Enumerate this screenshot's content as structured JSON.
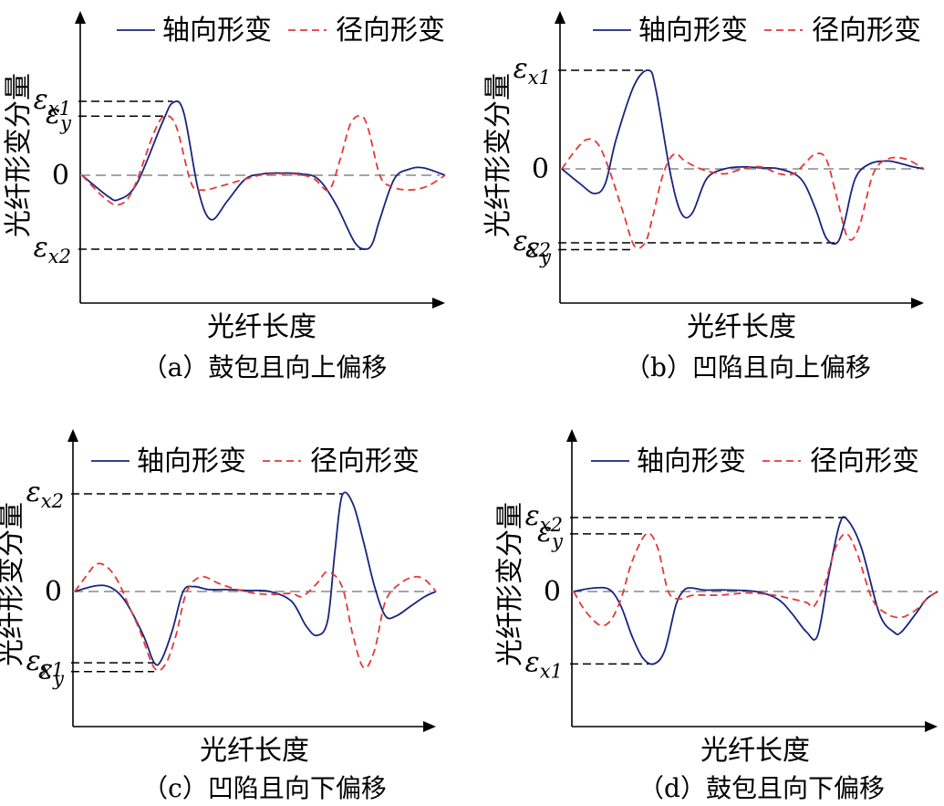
{
  "legend": {
    "axial": "轴向形变",
    "radial": "径向形变"
  },
  "colors": {
    "axial": "#1a237e",
    "radial": "#e53935"
  },
  "chart_data": [
    {
      "type": "line",
      "caption": "（a）鼓包且向上偏移",
      "xlabel": "光纤长度",
      "ylabel": "光纤形变分量",
      "zero_label": "0",
      "ylim": [
        -1.75,
        1.4
      ],
      "labels": [
        {
          "sym": "ε",
          "sub": "x1",
          "value": 1.0
        },
        {
          "sym": "ε",
          "sub": "y",
          "value": 0.8
        },
        {
          "sym": "ε",
          "sub": "x2",
          "value": -1.0
        }
      ],
      "series": [
        {
          "key": "axial",
          "x": [
            0,
            0.07,
            0.1,
            0.15,
            0.22,
            0.25,
            0.28,
            0.32,
            0.355,
            0.4,
            0.45,
            0.5,
            0.55,
            0.6,
            0.65,
            0.7,
            0.75,
            0.78,
            0.8,
            0.82,
            0.86,
            0.9,
            0.94,
            1
          ],
          "y": [
            0,
            -0.28,
            -0.33,
            -0.12,
            0.7,
            0.98,
            0.85,
            -0.2,
            -0.6,
            -0.35,
            -0.05,
            0.02,
            0.03,
            0.02,
            -0.05,
            -0.4,
            -0.9,
            -1.0,
            -0.92,
            -0.6,
            -0.05,
            0.08,
            0.1,
            0
          ]
        },
        {
          "key": "radial",
          "x": [
            0,
            0.06,
            0.1,
            0.14,
            0.2,
            0.23,
            0.26,
            0.3,
            0.33,
            0.38,
            0.45,
            0.5,
            0.55,
            0.6,
            0.64,
            0.68,
            0.71,
            0.74,
            0.77,
            0.79,
            0.82,
            0.85,
            0.9,
            0.95,
            1
          ],
          "y": [
            0,
            -0.3,
            -0.4,
            -0.2,
            0.6,
            0.8,
            0.65,
            -0.1,
            -0.2,
            -0.15,
            -0.05,
            0.01,
            0.02,
            0.01,
            -0.05,
            -0.2,
            0.2,
            0.7,
            0.8,
            0.6,
            0.0,
            -0.15,
            -0.2,
            -0.15,
            0
          ]
        }
      ]
    },
    {
      "type": "line",
      "caption": "（b）凹陷且向上偏移",
      "xlabel": "光纤长度",
      "ylabel": "光纤形变分量",
      "zero_label": "0",
      "ylim": [
        -1.35,
        1.4
      ],
      "labels": [
        {
          "sym": "ε",
          "sub": "x1",
          "value": 1.0
        },
        {
          "sym": "ε",
          "sub": "x2",
          "value": -0.75
        },
        {
          "sym": "ε",
          "sub": "y",
          "value": -0.82
        }
      ],
      "series": [
        {
          "key": "axial",
          "x": [
            0,
            0.05,
            0.09,
            0.12,
            0.15,
            0.2,
            0.24,
            0.26,
            0.3,
            0.33,
            0.36,
            0.4,
            0.45,
            0.5,
            0.55,
            0.6,
            0.66,
            0.7,
            0.73,
            0.76,
            0.78,
            0.81,
            0.85,
            0.9,
            0.94,
            0.97,
            1
          ],
          "y": [
            0,
            -0.15,
            -0.25,
            -0.15,
            0.3,
            0.85,
            1.0,
            0.8,
            -0.05,
            -0.45,
            -0.45,
            -0.1,
            0.0,
            0.02,
            0.01,
            0.0,
            -0.1,
            -0.4,
            -0.7,
            -0.75,
            -0.55,
            -0.1,
            0.05,
            0.08,
            0.05,
            0.02,
            0
          ]
        },
        {
          "key": "radial",
          "x": [
            0,
            0.04,
            0.07,
            0.1,
            0.13,
            0.17,
            0.2,
            0.23,
            0.25,
            0.28,
            0.31,
            0.34,
            0.37,
            0.4,
            0.45,
            0.5,
            0.55,
            0.6,
            0.64,
            0.67,
            0.7,
            0.73,
            0.76,
            0.79,
            0.82,
            0.86,
            0.9,
            0.95,
            1
          ],
          "y": [
            0,
            0.2,
            0.3,
            0.25,
            0.0,
            -0.45,
            -0.78,
            -0.75,
            -0.5,
            -0.05,
            0.15,
            0.08,
            0.02,
            -0.02,
            -0.05,
            0.0,
            0.02,
            -0.05,
            -0.05,
            0.05,
            0.15,
            0.1,
            -0.3,
            -0.7,
            -0.6,
            -0.05,
            0.1,
            0.1,
            0
          ]
        }
      ]
    },
    {
      "type": "line",
      "caption": "（c）凹陷且向下偏移",
      "xlabel": "光纤长度",
      "ylabel": "光纤形变分量",
      "zero_label": "0",
      "ylim": [
        -1.35,
        1.4
      ],
      "labels": [
        {
          "sym": "ε",
          "sub": "x2",
          "value": 1.0
        },
        {
          "sym": "ε",
          "sub": "x1",
          "value": -0.73
        },
        {
          "sym": "ε",
          "sub": "y",
          "value": -0.82
        }
      ],
      "series": [
        {
          "key": "axial",
          "x": [
            0,
            0.06,
            0.1,
            0.14,
            0.19,
            0.22,
            0.24,
            0.27,
            0.3,
            0.33,
            0.37,
            0.42,
            0.48,
            0.54,
            0.6,
            0.64,
            0.67,
            0.7,
            0.72,
            0.74,
            0.77,
            0.8,
            0.83,
            0.86,
            0.89,
            0.93,
            0.97,
            1
          ],
          "y": [
            0,
            0.06,
            0.04,
            -0.1,
            -0.45,
            -0.73,
            -0.7,
            -0.4,
            0.0,
            0.05,
            0.02,
            0.02,
            0.01,
            0.0,
            -0.1,
            -0.35,
            -0.45,
            -0.3,
            0.4,
            0.98,
            0.9,
            0.5,
            0.05,
            -0.25,
            -0.25,
            -0.15,
            -0.05,
            0
          ]
        },
        {
          "key": "radial",
          "x": [
            0,
            0.03,
            0.06,
            0.09,
            0.12,
            0.15,
            0.18,
            0.22,
            0.25,
            0.28,
            0.31,
            0.35,
            0.4,
            0.45,
            0.5,
            0.55,
            0.6,
            0.63,
            0.67,
            0.7,
            0.74,
            0.77,
            0.8,
            0.83,
            0.86,
            0.9,
            0.94,
            0.97,
            1
          ],
          "y": [
            0,
            0.15,
            0.28,
            0.25,
            0.1,
            -0.15,
            -0.4,
            -0.78,
            -0.75,
            -0.45,
            0.0,
            0.15,
            0.08,
            0.02,
            -0.02,
            -0.03,
            -0.02,
            -0.05,
            0.08,
            0.2,
            0.05,
            -0.45,
            -0.78,
            -0.6,
            -0.1,
            0.08,
            0.15,
            0.12,
            0
          ]
        }
      ]
    },
    {
      "type": "line",
      "caption": "（d）鼓包且向下偏移",
      "xlabel": "光纤长度",
      "ylabel": "光纤形变分量",
      "zero_label": "0",
      "ylim": [
        -1.75,
        1.4
      ],
      "labels": [
        {
          "sym": "ε",
          "sub": "x2",
          "value": 1.0
        },
        {
          "sym": "ε",
          "sub": "y",
          "value": 0.78
        },
        {
          "sym": "ε",
          "sub": "x1",
          "value": -0.98
        }
      ],
      "series": [
        {
          "key": "axial",
          "x": [
            0,
            0.06,
            0.1,
            0.13,
            0.16,
            0.19,
            0.22,
            0.25,
            0.28,
            0.3,
            0.32,
            0.36,
            0.42,
            0.5,
            0.56,
            0.6,
            0.64,
            0.67,
            0.7,
            0.73,
            0.75,
            0.79,
            0.84,
            0.88,
            0.9,
            0.94,
            0.97,
            1
          ],
          "y": [
            0,
            0.05,
            0.02,
            -0.2,
            -0.6,
            -0.9,
            -0.98,
            -0.8,
            -0.2,
            0.0,
            0.05,
            0.02,
            0.02,
            0.0,
            -0.1,
            -0.3,
            -0.55,
            -0.6,
            0.2,
            0.9,
            0.98,
            0.6,
            -0.3,
            -0.55,
            -0.55,
            -0.3,
            -0.1,
            0
          ]
        },
        {
          "key": "radial",
          "x": [
            0,
            0.03,
            0.07,
            0.1,
            0.13,
            0.16,
            0.2,
            0.23,
            0.26,
            0.29,
            0.33,
            0.4,
            0.48,
            0.55,
            0.6,
            0.64,
            0.66,
            0.69,
            0.72,
            0.75,
            0.78,
            0.82,
            0.86,
            0.9,
            0.94,
            0.97,
            1
          ],
          "y": [
            0,
            -0.25,
            -0.45,
            -0.4,
            -0.1,
            0.4,
            0.78,
            0.6,
            0.0,
            -0.1,
            -0.05,
            -0.05,
            -0.02,
            -0.05,
            -0.1,
            -0.15,
            -0.2,
            0.1,
            0.6,
            0.78,
            0.5,
            -0.1,
            -0.3,
            -0.35,
            -0.25,
            -0.1,
            0
          ]
        }
      ]
    }
  ]
}
